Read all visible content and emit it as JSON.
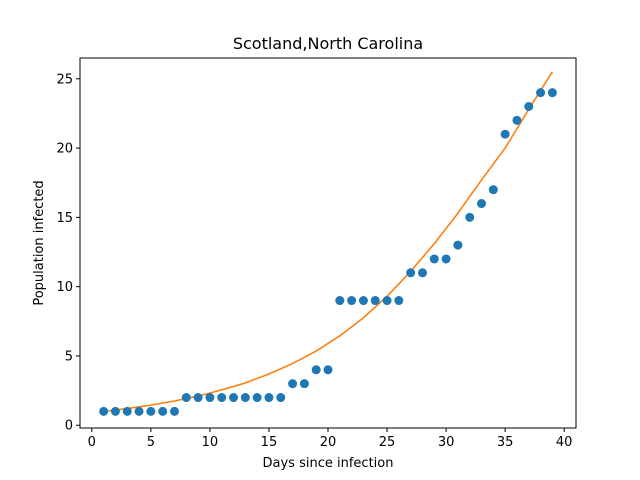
{
  "chart_data": {
    "type": "scatter",
    "title": "Scotland,North Carolina",
    "xlabel": "Days since infection",
    "ylabel": "Population infected",
    "xlim": [
      -1,
      41
    ],
    "ylim": [
      -0.2,
      26.5
    ],
    "xticks": [
      0,
      5,
      10,
      15,
      20,
      25,
      30,
      35,
      40
    ],
    "yticks": [
      0,
      5,
      10,
      15,
      20,
      25
    ],
    "grid": false,
    "series": [
      {
        "kind": "scatter",
        "color": "#1f77b4",
        "x": [
          1,
          2,
          3,
          4,
          5,
          6,
          7,
          8,
          9,
          10,
          11,
          12,
          13,
          14,
          15,
          16,
          17,
          18,
          19,
          20,
          21,
          22,
          23,
          24,
          25,
          26,
          27,
          28,
          29,
          30,
          31,
          32,
          33,
          34,
          35,
          36,
          37,
          38,
          39
        ],
        "y": [
          1,
          1,
          1,
          1,
          1,
          1,
          1,
          2,
          2,
          2,
          2,
          2,
          2,
          2,
          2,
          2,
          3,
          3,
          4,
          4,
          9,
          9,
          9,
          9,
          9,
          9,
          11,
          11,
          12,
          12,
          13,
          15,
          16,
          17,
          21,
          22,
          23,
          24,
          24
        ]
      },
      {
        "kind": "line",
        "color": "#ff7f0e",
        "x": [
          1,
          3,
          5,
          7,
          9,
          11,
          13,
          15,
          17,
          19,
          21,
          23,
          25,
          27,
          29,
          31,
          33,
          35,
          37,
          39
        ],
        "y": [
          1.0,
          1.2,
          1.45,
          1.75,
          2.1,
          2.55,
          3.05,
          3.7,
          4.45,
          5.35,
          6.45,
          7.75,
          9.3,
          11.1,
          13.1,
          15.3,
          17.7,
          20.0,
          22.8,
          25.5
        ]
      }
    ]
  }
}
